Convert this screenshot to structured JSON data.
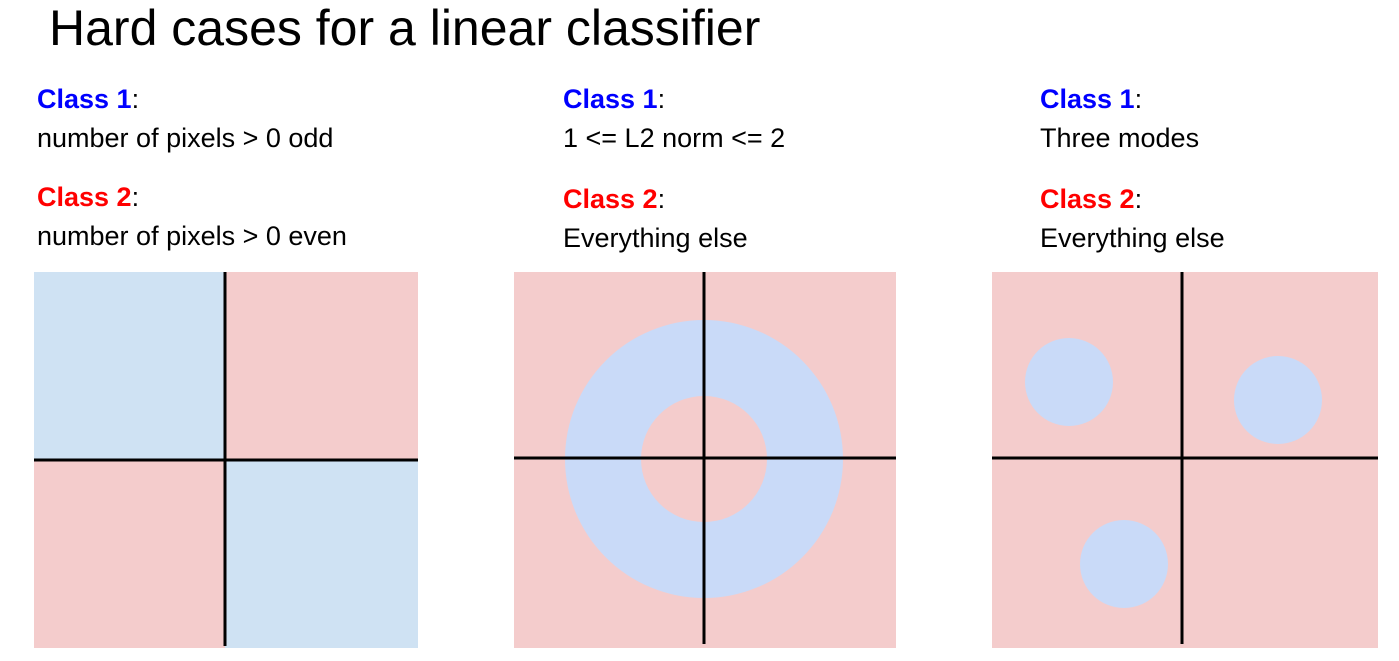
{
  "title": "Hard cases for a linear classifier",
  "colors": {
    "class1": "#0000ff",
    "class2": "#ff0000",
    "region_blue_panel1": "#cfe2f3",
    "region_blue": "#c9daf8",
    "region_red": "#f4cccc",
    "axis": "#000000"
  },
  "panels": [
    {
      "class1": {
        "label": "Class 1",
        "colon": ":",
        "desc": "number of pixels > 0 odd"
      },
      "class2": {
        "label": "Class 2",
        "colon": ":",
        "desc": "number of pixels > 0 even"
      }
    },
    {
      "class1": {
        "label": "Class 1",
        "colon": ":",
        "desc": "1 <= L2 norm <= 2"
      },
      "class2": {
        "label": "Class 2",
        "colon": ":",
        "desc": "Everything else"
      }
    },
    {
      "class1": {
        "label": "Class 1",
        "colon": ":",
        "desc": "Three modes"
      },
      "class2": {
        "label": "Class 2",
        "colon": ":",
        "desc": "Everything else"
      }
    }
  ]
}
